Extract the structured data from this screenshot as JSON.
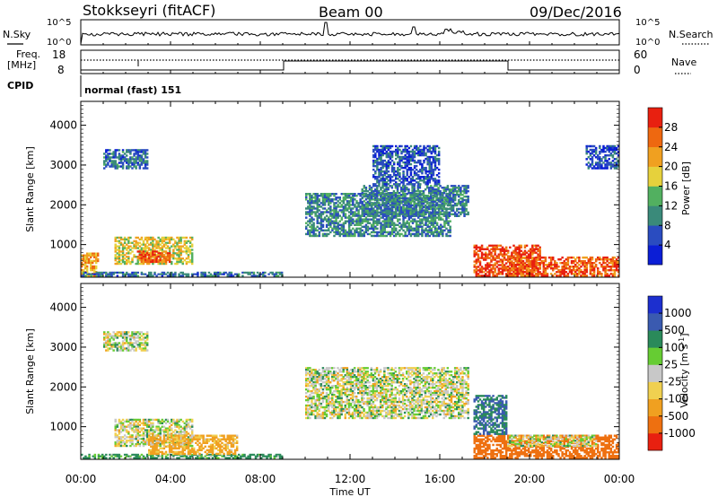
{
  "header": {
    "title": "Stokkseyri (fitACF)",
    "beam": "Beam 00",
    "date": "09/Dec/2016"
  },
  "top_panels": {
    "nsky_label": "N.Sky",
    "nsearch_label": "N.Search",
    "nsky_ticks": [
      "10^5",
      "10^0"
    ],
    "nsearch_ticks": [
      "10^5",
      "10^0"
    ],
    "freq_label_line1": "Freq.",
    "freq_label_line2": "[MHz]",
    "freq_ticks": [
      "18",
      "8"
    ],
    "nave_label": "Nave",
    "nave_ticks": [
      "60",
      "0"
    ],
    "cpid_label": "CPID",
    "cpid_text": "normal (fast) 151"
  },
  "colors": {
    "power": [
      "#0b1ed6",
      "#2a4cc0",
      "#3a8a7a",
      "#52b060",
      "#e6d13c",
      "#f0a020",
      "#ee6810",
      "#e82010"
    ],
    "velocity": [
      "#1c2fcf",
      "#3a5ab0",
      "#2a8a5a",
      "#66cc33",
      "#c8c8c8",
      "#f0d050",
      "#f0a020",
      "#ee7010",
      "#e82010"
    ],
    "ground_scatter": "#c8c8c8"
  },
  "chart_data": [
    {
      "type": "heatmap",
      "name": "power",
      "ylabel": "Slant Range [km]",
      "xlim": [
        "00:00",
        "24:00"
      ],
      "ylim": [
        180,
        4600
      ],
      "yticks": [
        1000,
        2000,
        3000,
        4000
      ],
      "xtick_labels": [
        "00:00",
        "04:00",
        "08:00",
        "12:00",
        "16:00",
        "20:00",
        "00:00"
      ],
      "colorbar": {
        "label": "Power [dB]",
        "ticks": [
          "4",
          "8",
          "12",
          "16",
          "20",
          "24",
          "28"
        ],
        "range": [
          0,
          30
        ]
      },
      "regions": [
        {
          "t": [
            0.0,
            0.8
          ],
          "r": [
            200,
            800
          ],
          "level": 22
        },
        {
          "t": [
            0.0,
            9.0
          ],
          "r": [
            200,
            320
          ],
          "level": 8
        },
        {
          "t": [
            1.0,
            3.0
          ],
          "r": [
            2900,
            3400
          ],
          "level": 8
        },
        {
          "t": [
            1.5,
            5.0
          ],
          "r": [
            500,
            1200
          ],
          "level": 18
        },
        {
          "t": [
            2.5,
            4.0
          ],
          "r": [
            550,
            850
          ],
          "level": 26
        },
        {
          "t": [
            10.0,
            16.5
          ],
          "r": [
            1200,
            2300
          ],
          "level": 10
        },
        {
          "t": [
            12.5,
            17.3
          ],
          "r": [
            1700,
            2500
          ],
          "level": 9
        },
        {
          "t": [
            13.0,
            16.0
          ],
          "r": [
            2500,
            3500
          ],
          "level": 6
        },
        {
          "t": [
            17.5,
            20.5
          ],
          "r": [
            200,
            1000
          ],
          "level": 28
        },
        {
          "t": [
            19.0,
            24.0
          ],
          "r": [
            200,
            700
          ],
          "level": 27
        },
        {
          "t": [
            22.5,
            24.0
          ],
          "r": [
            2900,
            3500
          ],
          "level": 6
        }
      ]
    },
    {
      "type": "heatmap",
      "name": "velocity",
      "ylabel": "Slant Range [km]",
      "xlabel": "Time UT",
      "xlim": [
        "00:00",
        "24:00"
      ],
      "ylim": [
        180,
        4600
      ],
      "yticks": [
        1000,
        2000,
        3000,
        4000
      ],
      "xtick_labels": [
        "00:00",
        "04:00",
        "08:00",
        "12:00",
        "16:00",
        "20:00",
        "00:00"
      ],
      "colorbar": {
        "label": "Velocity [m s^-1]",
        "ticks": [
          "1000",
          "500",
          "100",
          "25",
          "-25",
          "-100",
          "-500",
          "-1000"
        ]
      },
      "regions": [
        {
          "t": [
            0.0,
            9.0
          ],
          "r": [
            200,
            320
          ],
          "level": 100
        },
        {
          "t": [
            1.0,
            3.0
          ],
          "r": [
            2900,
            3400
          ],
          "level": 0
        },
        {
          "t": [
            1.5,
            5.0
          ],
          "r": [
            500,
            1200
          ],
          "level": 0
        },
        {
          "t": [
            3.0,
            7.0
          ],
          "r": [
            300,
            800
          ],
          "level": -100
        },
        {
          "t": [
            10.0,
            17.3
          ],
          "r": [
            1200,
            2500
          ],
          "level": 0
        },
        {
          "t": [
            17.5,
            24.0
          ],
          "r": [
            200,
            800
          ],
          "level": -400
        },
        {
          "t": [
            19.0,
            23.0
          ],
          "r": [
            500,
            800
          ],
          "level": 0
        },
        {
          "t": [
            17.5,
            19.0
          ],
          "r": [
            800,
            1800
          ],
          "level": 300
        }
      ]
    }
  ]
}
